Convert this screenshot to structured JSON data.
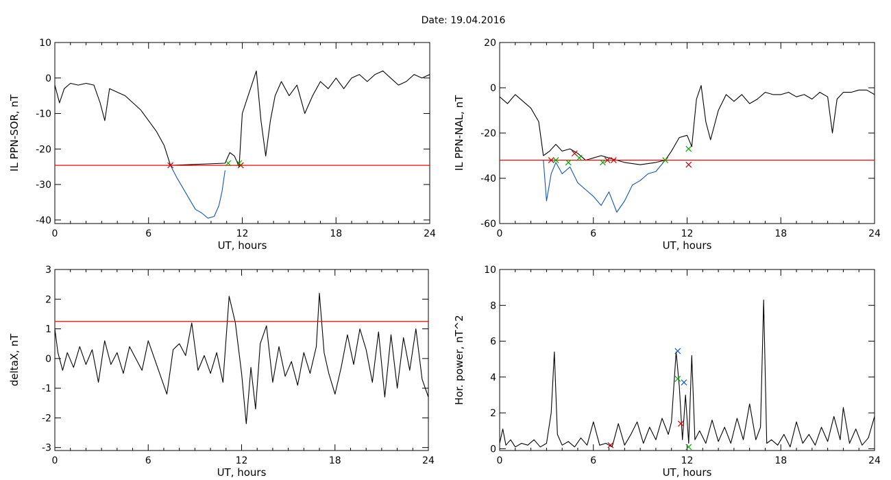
{
  "title": "Date:  19.04.2016",
  "chart_data": [
    {
      "type": "line",
      "ylabel": "IL PPN-SOR, nT",
      "xlabel": "UT, hours",
      "xlim": [
        0,
        24
      ],
      "ylim": [
        -41,
        10
      ],
      "xticks": [
        "0",
        "6",
        "12",
        "18",
        "24"
      ],
      "yticks": [
        "10",
        "0",
        "-10",
        "-20",
        "-30",
        "-40"
      ],
      "ytick_values": [
        10,
        0,
        -10,
        -20,
        -30,
        -40
      ],
      "threshold": -24.6,
      "threshold_color": "#ff0000",
      "series": [
        {
          "color": "#000000",
          "x": [
            0,
            0.3,
            0.6,
            1.0,
            1.5,
            2.0,
            2.5,
            2.9,
            3.2,
            3.5,
            4.0,
            4.5,
            5.0,
            5.5,
            6.0,
            6.5,
            7.0,
            7.4,
            10.9,
            11.2,
            11.5,
            11.8,
            12.0,
            12.3,
            12.6,
            12.9,
            13.2,
            13.5,
            13.8,
            14.1,
            14.5,
            15.0,
            15.5,
            16.0,
            16.5,
            17.0,
            17.5,
            18.0,
            18.5,
            19.0,
            19.5,
            20.0,
            20.5,
            21.0,
            21.5,
            22.0,
            22.5,
            23.0,
            23.5,
            24.0
          ],
          "y": [
            -2,
            -7,
            -3,
            -1.5,
            -2,
            -1.5,
            -2,
            -7,
            -12,
            -3,
            -4,
            -5,
            -7,
            -9,
            -12,
            -15,
            -19,
            -24.6,
            -24,
            -21,
            -22,
            -25,
            -10,
            -6,
            -2,
            2,
            -12,
            -22,
            -12,
            -5,
            -1,
            -5,
            -2,
            -10,
            -5,
            -1,
            -3,
            0,
            -3,
            0,
            1,
            -1,
            1,
            2,
            0,
            -2,
            -1,
            1,
            0,
            1
          ]
        },
        {
          "color": "#1155bb",
          "x": [
            7.4,
            7.8,
            8.2,
            8.6,
            9.0,
            9.4,
            9.8,
            10.2,
            10.5,
            10.7,
            10.9
          ],
          "y": [
            -24.6,
            -28,
            -31,
            -34,
            -37,
            -38,
            -39.5,
            -39,
            -36,
            -32,
            -26
          ]
        }
      ],
      "markers": [
        {
          "x": 7.4,
          "y": -24.6,
          "color": "#cc0000"
        },
        {
          "x": 11.1,
          "y": -24,
          "color": "#00aa00"
        },
        {
          "x": 11.9,
          "y": -24.6,
          "color": "#cc0000"
        },
        {
          "x": 11.8,
          "y": -24,
          "color": "#00aa00"
        }
      ]
    },
    {
      "type": "line",
      "ylabel": "IL PPN-NAL, nT",
      "xlabel": "UT, hours",
      "xlim": [
        0,
        24
      ],
      "ylim": [
        -60,
        20
      ],
      "xticks": [
        "0",
        "6",
        "12",
        "18",
        "24"
      ],
      "yticks": [
        "20",
        "0",
        "-20",
        "-40",
        "-60"
      ],
      "ytick_values": [
        20,
        0,
        -20,
        -40,
        -60
      ],
      "threshold": -32,
      "threshold_color": "#ff0000",
      "series": [
        {
          "color": "#000000",
          "x": [
            0,
            0.5,
            1.0,
            1.5,
            2.0,
            2.5,
            2.8,
            3.2,
            3.6,
            4.0,
            4.5,
            5.0,
            5.5,
            6.0,
            6.5,
            7.0,
            7.5,
            8.0,
            9.0,
            10.0,
            10.6,
            11.0,
            11.5,
            12.0,
            12.3,
            12.6,
            12.9,
            13.2,
            13.5,
            14.0,
            14.5,
            15.0,
            15.5,
            16.0,
            16.5,
            17.0,
            17.5,
            18.0,
            18.5,
            19.0,
            19.5,
            20.0,
            20.5,
            21.0,
            21.3,
            21.6,
            22.0,
            22.5,
            23.0,
            23.5,
            24.0
          ],
          "y": [
            -4,
            -7,
            -3,
            -6,
            -9,
            -15,
            -30,
            -28,
            -25,
            -28,
            -27,
            -29,
            -32,
            -31,
            -30,
            -31,
            -32,
            -33,
            -34,
            -33,
            -32,
            -28,
            -22,
            -21,
            -26,
            -5,
            1,
            -15,
            -23,
            -10,
            -3,
            -6,
            -3,
            -7,
            -5,
            -2,
            -3,
            -3,
            -2,
            -4,
            -3,
            -5,
            -2,
            -4,
            -20,
            -5,
            -2,
            -2,
            -1,
            -1,
            -3
          ]
        },
        {
          "color": "#1155bb",
          "x": [
            2.8,
            3.0,
            3.3,
            3.6,
            4.0,
            4.5,
            5.0,
            5.5,
            6.0,
            6.5,
            7.0,
            7.5,
            8.0,
            8.5,
            9.0,
            9.5,
            10.0,
            10.6
          ],
          "y": [
            -32,
            -50,
            -38,
            -33,
            -38,
            -35,
            -42,
            -45,
            -48,
            -52,
            -46,
            -55,
            -50,
            -43,
            -41,
            -38,
            -37,
            -32
          ]
        }
      ],
      "markers": [
        {
          "x": 3.3,
          "y": -32,
          "color": "#cc0000"
        },
        {
          "x": 3.6,
          "y": -32,
          "color": "#00aa00"
        },
        {
          "x": 4.4,
          "y": -33,
          "color": "#00aa00"
        },
        {
          "x": 4.8,
          "y": -29,
          "color": "#cc0000"
        },
        {
          "x": 5.1,
          "y": -31,
          "color": "#00aa00"
        },
        {
          "x": 6.6,
          "y": -33,
          "color": "#00aa00"
        },
        {
          "x": 6.9,
          "y": -32,
          "color": "#cc0000"
        },
        {
          "x": 7.3,
          "y": -32,
          "color": "#cc0000"
        },
        {
          "x": 10.6,
          "y": -32,
          "color": "#00aa00"
        },
        {
          "x": 12.1,
          "y": -27,
          "color": "#00aa00"
        },
        {
          "x": 12.1,
          "y": -34,
          "color": "#cc0000"
        }
      ]
    },
    {
      "type": "line",
      "ylabel": "deltaX, nT",
      "xlabel": "UT, hours",
      "xlim": [
        0,
        24
      ],
      "ylim": [
        -3.1,
        3
      ],
      "xticks": [
        "0",
        "6",
        "12",
        "18",
        "24"
      ],
      "yticks": [
        "3",
        "2",
        "1",
        "0",
        "-1",
        "-2",
        "-3"
      ],
      "ytick_values": [
        3,
        2,
        1,
        0,
        -1,
        -2,
        -3
      ],
      "threshold": 1.25,
      "threshold_color": "#ff0000",
      "series": [
        {
          "color": "#000000",
          "x": [
            0,
            0.2,
            0.5,
            0.8,
            1.2,
            1.6,
            2.0,
            2.4,
            2.8,
            3.2,
            3.6,
            4.0,
            4.4,
            4.8,
            5.2,
            5.6,
            6.0,
            6.4,
            6.8,
            7.2,
            7.6,
            8.0,
            8.4,
            8.8,
            9.2,
            9.6,
            10.0,
            10.4,
            10.8,
            11.2,
            11.6,
            12.0,
            12.3,
            12.6,
            12.9,
            13.2,
            13.6,
            14.0,
            14.4,
            14.8,
            15.2,
            15.6,
            16.0,
            16.4,
            16.8,
            17.0,
            17.3,
            17.6,
            18.0,
            18.4,
            18.8,
            19.2,
            19.6,
            20.0,
            20.4,
            20.8,
            21.2,
            21.6,
            22.0,
            22.4,
            22.8,
            23.2,
            23.6,
            24.0
          ],
          "y": [
            1.0,
            0.2,
            -0.4,
            0.2,
            -0.3,
            0.4,
            -0.2,
            0.3,
            -0.8,
            0.6,
            -0.2,
            0.2,
            -0.5,
            0.4,
            0.0,
            -0.4,
            0.6,
            0.0,
            -0.6,
            -1.2,
            0.3,
            0.5,
            0.1,
            1.2,
            -0.4,
            0.1,
            -0.5,
            0.2,
            -0.8,
            2.1,
            1.2,
            -0.5,
            -2.2,
            -0.3,
            -1.7,
            0.5,
            1.1,
            -0.8,
            0.4,
            -0.6,
            -0.1,
            -0.9,
            0.2,
            -0.5,
            0.4,
            2.2,
            0.2,
            -0.5,
            -1.2,
            -0.3,
            0.8,
            -0.2,
            1.0,
            0.3,
            -0.8,
            0.9,
            -1.3,
            0.8,
            -1.0,
            0.7,
            -0.4,
            1.0,
            -0.7,
            -1.3
          ]
        }
      ],
      "markers": []
    },
    {
      "type": "line",
      "ylabel": "Hor. power, nT^2",
      "xlabel": "UT, hours",
      "xlim": [
        0,
        24
      ],
      "ylim": [
        -0.1,
        10
      ],
      "xticks": [
        "0",
        "6",
        "12",
        "18",
        "24"
      ],
      "yticks": [
        "10",
        "8",
        "6",
        "4",
        "2",
        "0"
      ],
      "ytick_values": [
        10,
        8,
        6,
        4,
        2,
        0
      ],
      "series": [
        {
          "color": "#000000",
          "x": [
            0,
            0.2,
            0.4,
            0.7,
            1.0,
            1.4,
            1.8,
            2.2,
            2.6,
            3.0,
            3.3,
            3.5,
            3.7,
            4.0,
            4.4,
            4.8,
            5.2,
            5.6,
            6.0,
            6.4,
            6.8,
            7.2,
            7.6,
            8.0,
            8.4,
            8.8,
            9.2,
            9.6,
            10.0,
            10.4,
            10.8,
            11.0,
            11.3,
            11.5,
            11.7,
            11.9,
            12.1,
            12.3,
            12.5,
            12.8,
            13.2,
            13.6,
            14.0,
            14.4,
            14.8,
            15.2,
            15.6,
            16.0,
            16.4,
            16.7,
            16.9,
            17.1,
            17.4,
            17.8,
            18.2,
            18.6,
            19.0,
            19.4,
            19.8,
            20.2,
            20.6,
            21.0,
            21.4,
            21.8,
            22.0,
            22.4,
            22.8,
            23.2,
            23.6,
            24.0
          ],
          "y": [
            0.3,
            1.1,
            0.2,
            0.5,
            0.1,
            0.3,
            0.2,
            0.5,
            0.1,
            0.3,
            2.0,
            5.4,
            0.8,
            0.2,
            0.4,
            0.1,
            0.6,
            0.2,
            1.5,
            0.2,
            0.3,
            0.1,
            1.4,
            0.2,
            0.8,
            1.5,
            0.3,
            1.2,
            0.5,
            1.7,
            0.8,
            1.5,
            5.4,
            3.5,
            0.5,
            3.0,
            0.3,
            5.2,
            0.5,
            1.0,
            0.3,
            1.6,
            0.4,
            1.2,
            0.3,
            1.7,
            0.5,
            2.5,
            0.5,
            1.2,
            8.3,
            0.3,
            0.5,
            0.2,
            0.8,
            0.1,
            1.5,
            0.3,
            0.8,
            0.2,
            1.2,
            0.4,
            1.8,
            0.5,
            2.3,
            0.3,
            1.1,
            0.2,
            0.6,
            1.8
          ]
        }
      ],
      "markers": [
        {
          "x": 11.4,
          "y": 5.45,
          "color": "#1155cc"
        },
        {
          "x": 11.4,
          "y": 3.9,
          "color": "#00aa00"
        },
        {
          "x": 11.8,
          "y": 3.7,
          "color": "#1155cc"
        },
        {
          "x": 11.6,
          "y": 1.4,
          "color": "#cc0000"
        },
        {
          "x": 12.1,
          "y": 0.1,
          "color": "#00aa00"
        },
        {
          "x": 7.1,
          "y": 0.2,
          "color": "#cc0000"
        }
      ]
    }
  ]
}
